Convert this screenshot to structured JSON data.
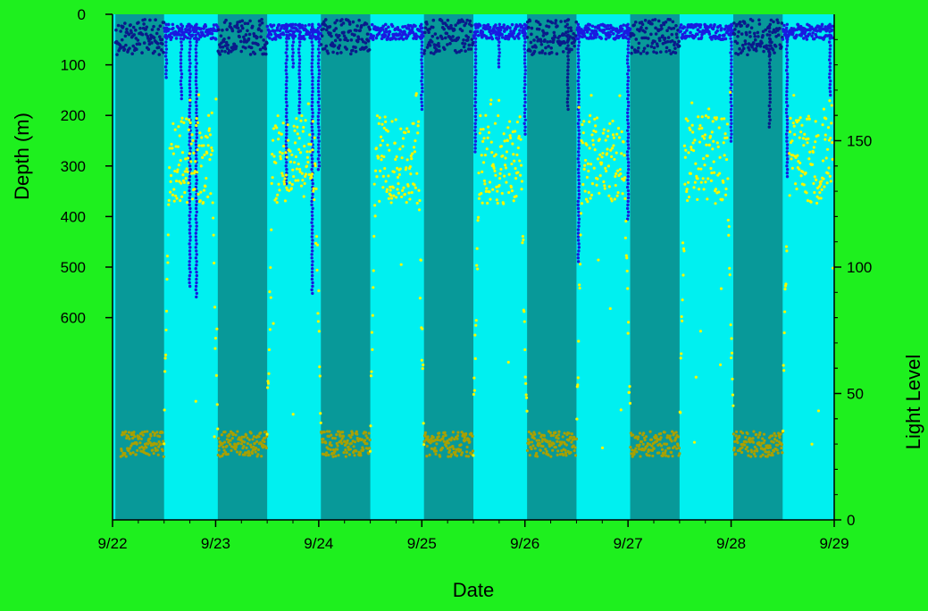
{
  "chart_data": {
    "type": "scatter",
    "xlabel": "Date",
    "ylabel_left": "Depth (m)",
    "ylabel_right": "Light Level",
    "x_ticks": [
      "9/22",
      "9/23",
      "9/24",
      "9/25",
      "9/26",
      "9/27",
      "9/28",
      "9/29"
    ],
    "x_range_days": [
      0,
      7
    ],
    "depth_ticks": [
      0,
      100,
      200,
      300,
      400,
      500,
      600
    ],
    "depth_range": [
      0,
      1000
    ],
    "light_ticks": [
      0,
      50,
      100,
      150
    ],
    "light_range": [
      0,
      200
    ],
    "colors": {
      "background": "#1ef01e",
      "day": "#00f0f0",
      "night": "#089999",
      "depth_night": "#0a1a8a",
      "depth_day": "#1a1ae0",
      "light_day": "#f5f500",
      "light_night": "#a8a000"
    },
    "night_periods": [
      {
        "start": "9/22 00:40",
        "end": "9/22 12:00"
      },
      {
        "start": "9/23 00:30",
        "end": "9/23 12:00"
      },
      {
        "start": "9/24 00:30",
        "end": "9/24 12:00"
      },
      {
        "start": "9/25 00:30",
        "end": "9/25 12:00"
      },
      {
        "start": "9/26 00:30",
        "end": "9/26 12:00"
      },
      {
        "start": "9/27 00:30",
        "end": "9/27 12:00"
      },
      {
        "start": "9/28 00:30",
        "end": "9/28 12:00"
      }
    ],
    "series": [
      {
        "name": "Depth",
        "axis": "left",
        "night_depth_range": [
          10,
          80
        ],
        "day_depth_range": [
          20,
          50
        ],
        "dive_spikes": [
          {
            "date": "9/22 12:30",
            "depth": 130
          },
          {
            "date": "9/22 16:00",
            "depth": 170
          },
          {
            "date": "9/22 18:00",
            "depth": 540
          },
          {
            "date": "9/22 19:30",
            "depth": 565
          },
          {
            "date": "9/23 16:30",
            "depth": 340
          },
          {
            "date": "9/23 18:00",
            "depth": 110
          },
          {
            "date": "9/23 19:30",
            "depth": 200
          },
          {
            "date": "9/23 22:30",
            "depth": 555
          },
          {
            "date": "9/24 00:00",
            "depth": 310
          },
          {
            "date": "9/25 00:00",
            "depth": 190
          },
          {
            "date": "9/25 12:30",
            "depth": 275
          },
          {
            "date": "9/25 18:00",
            "depth": 110
          },
          {
            "date": "9/26 00:00",
            "depth": 240
          },
          {
            "date": "9/26 10:00",
            "depth": 190
          },
          {
            "date": "9/26 12:30",
            "depth": 495
          },
          {
            "date": "9/27 00:00",
            "depth": 405
          },
          {
            "date": "9/28 00:00",
            "depth": 255
          },
          {
            "date": "9/28 09:00",
            "depth": 225
          },
          {
            "date": "9/28 13:00",
            "depth": 325
          },
          {
            "date": "9/28 23:00",
            "depth": 165
          }
        ]
      },
      {
        "name": "Light Level",
        "axis": "right",
        "night_level_range": [
          25,
          35
        ],
        "day_level_range": [
          125,
          160
        ],
        "day_peak": 170
      }
    ]
  }
}
